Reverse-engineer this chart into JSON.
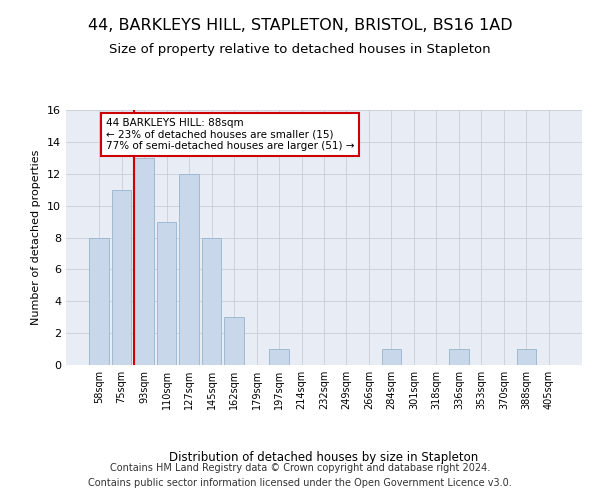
{
  "title": "44, BARKLEYS HILL, STAPLETON, BRISTOL, BS16 1AD",
  "subtitle": "Size of property relative to detached houses in Stapleton",
  "xlabel_bottom": "Distribution of detached houses by size in Stapleton",
  "ylabel": "Number of detached properties",
  "categories": [
    "58sqm",
    "75sqm",
    "93sqm",
    "110sqm",
    "127sqm",
    "145sqm",
    "162sqm",
    "179sqm",
    "197sqm",
    "214sqm",
    "232sqm",
    "249sqm",
    "266sqm",
    "284sqm",
    "301sqm",
    "318sqm",
    "336sqm",
    "353sqm",
    "370sqm",
    "388sqm",
    "405sqm"
  ],
  "values": [
    8,
    11,
    13,
    9,
    12,
    8,
    3,
    0,
    1,
    0,
    0,
    0,
    0,
    1,
    0,
    0,
    1,
    0,
    0,
    1,
    0
  ],
  "bar_color": "#c8d8ea",
  "bar_edge_color": "#9ab4cc",
  "vline_color": "#cc0000",
  "vline_index": 2,
  "annotation_line1": "44 BARKLEYS HILL: 88sqm",
  "annotation_line2": "← 23% of detached houses are smaller (15)",
  "annotation_line3": "77% of semi-detached houses are larger (51) →",
  "annotation_box_color": "#cc0000",
  "ylim": [
    0,
    16
  ],
  "yticks": [
    0,
    2,
    4,
    6,
    8,
    10,
    12,
    14,
    16
  ],
  "grid_color": "#c8cdd8",
  "background_color": "#ffffff",
  "plot_bg_color": "#e8edf5",
  "footer_line1": "Contains HM Land Registry data © Crown copyright and database right 2024.",
  "footer_line2": "Contains public sector information licensed under the Open Government Licence v3.0.",
  "title_fontsize": 11.5,
  "subtitle_fontsize": 9.5,
  "ylabel_fontsize": 8,
  "xlabel_fontsize": 8.5,
  "tick_fontsize": 7,
  "ytick_fontsize": 8,
  "footer_fontsize": 7,
  "annot_fontsize": 7.5
}
